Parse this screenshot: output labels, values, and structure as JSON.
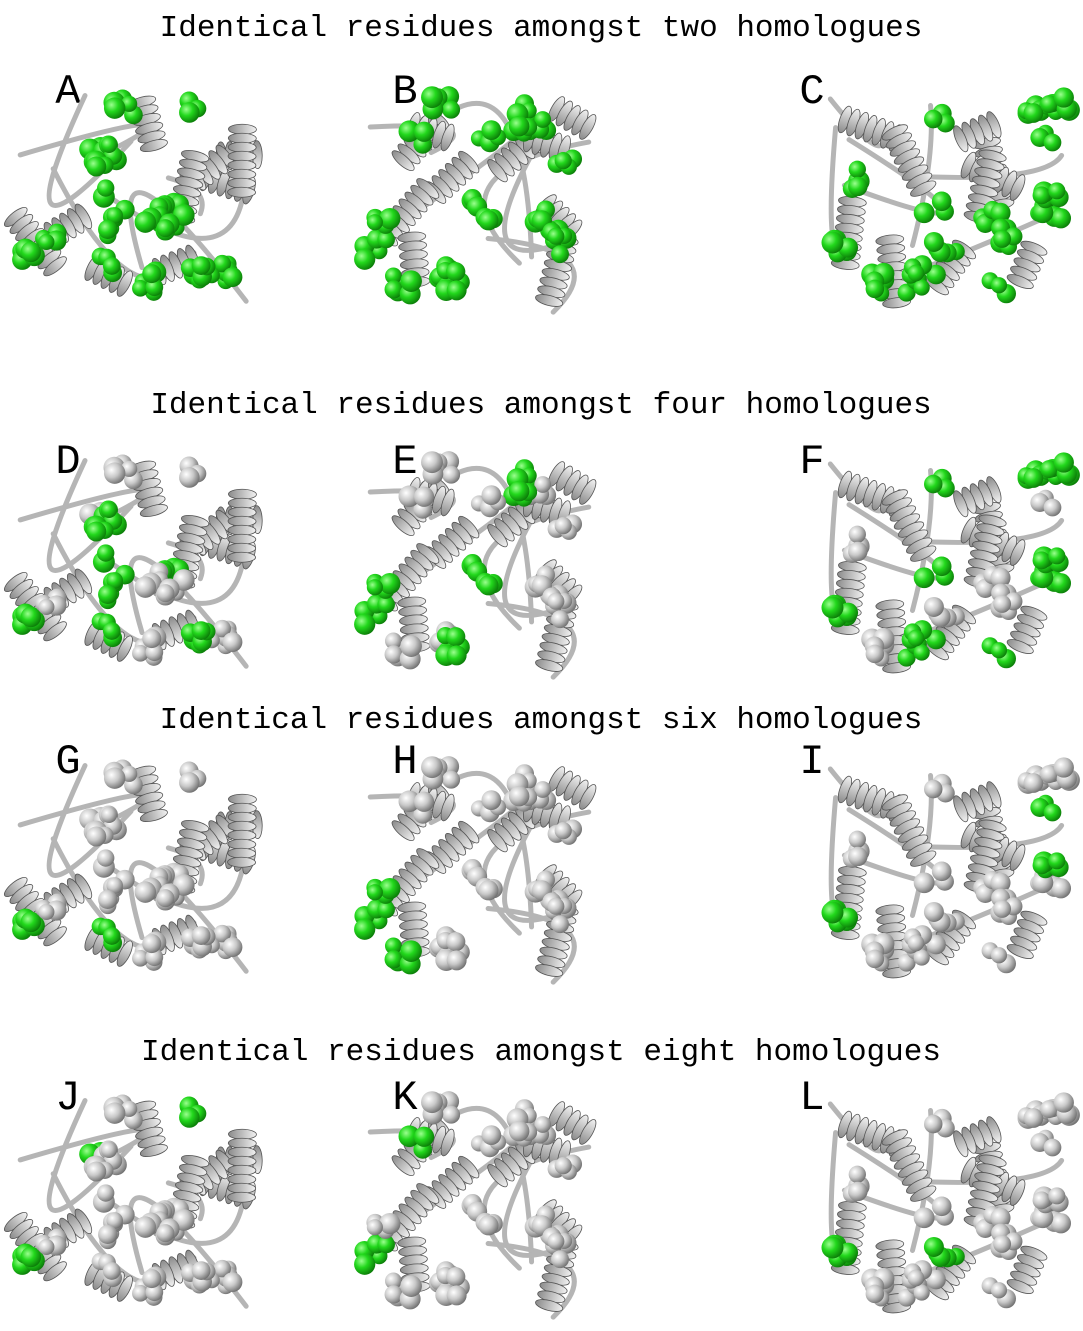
{
  "rows": [
    {
      "title": "Identical residues amongst two homologues",
      "panels": [
        "A",
        "B",
        "C"
      ]
    },
    {
      "title": "Identical residues amongst four homologues",
      "panels": [
        "D",
        "E",
        "F"
      ]
    },
    {
      "title": "Identical residues amongst six homologues",
      "panels": [
        "G",
        "H",
        "I"
      ]
    },
    {
      "title": "Identical residues amongst eight homologues",
      "panels": [
        "J",
        "K",
        "L"
      ]
    }
  ]
}
